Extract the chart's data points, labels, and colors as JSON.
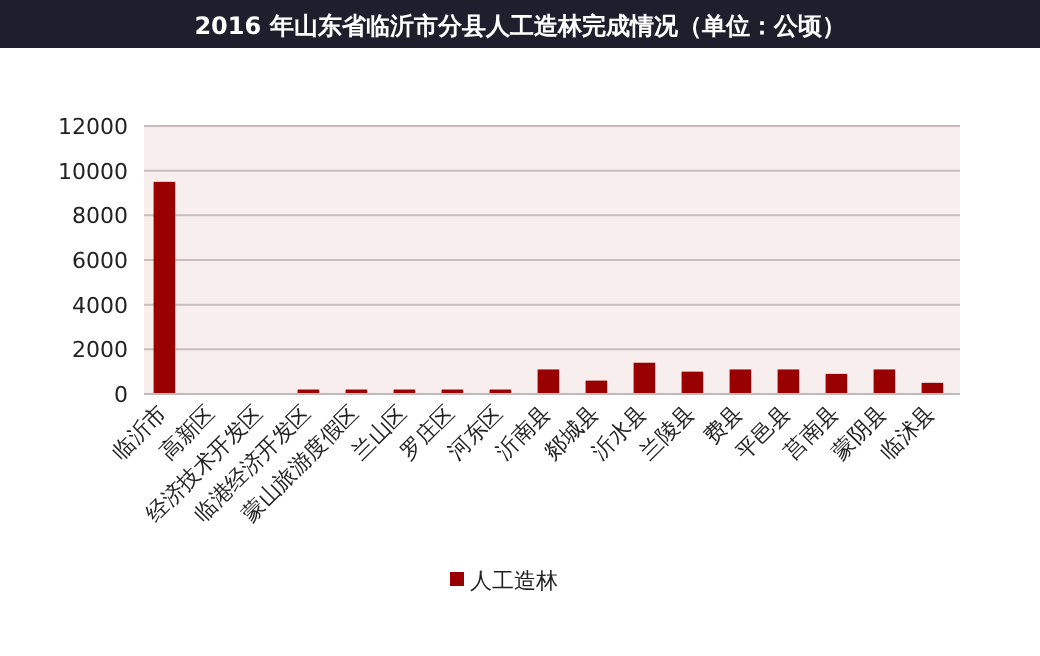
{
  "chart_data": {
    "type": "bar",
    "title": "2016 年山东省临沂市分县人工造林完成情况（单位：公顷）",
    "categories": [
      "临沂市",
      "高新区",
      "经济技术开发区",
      "临港经济开发区",
      "蒙山旅游度假区",
      "兰山区",
      "罗庄区",
      "河东区",
      "沂南县",
      "郯城县",
      "沂水县",
      "兰陵县",
      "费县",
      "平邑县",
      "莒南县",
      "蒙阴县",
      "临沭县"
    ],
    "series": [
      {
        "name": "人工造林",
        "color": "#990000",
        "values": [
          9500,
          0,
          0,
          200,
          200,
          200,
          200,
          200,
          1100,
          600,
          1400,
          1000,
          1100,
          1100,
          900,
          1100,
          500
        ]
      }
    ],
    "ylim": [
      0,
      12000
    ],
    "yticks": [
      0,
      2000,
      4000,
      6000,
      8000,
      10000,
      12000
    ],
    "grid": "y",
    "legend": "bottom"
  }
}
